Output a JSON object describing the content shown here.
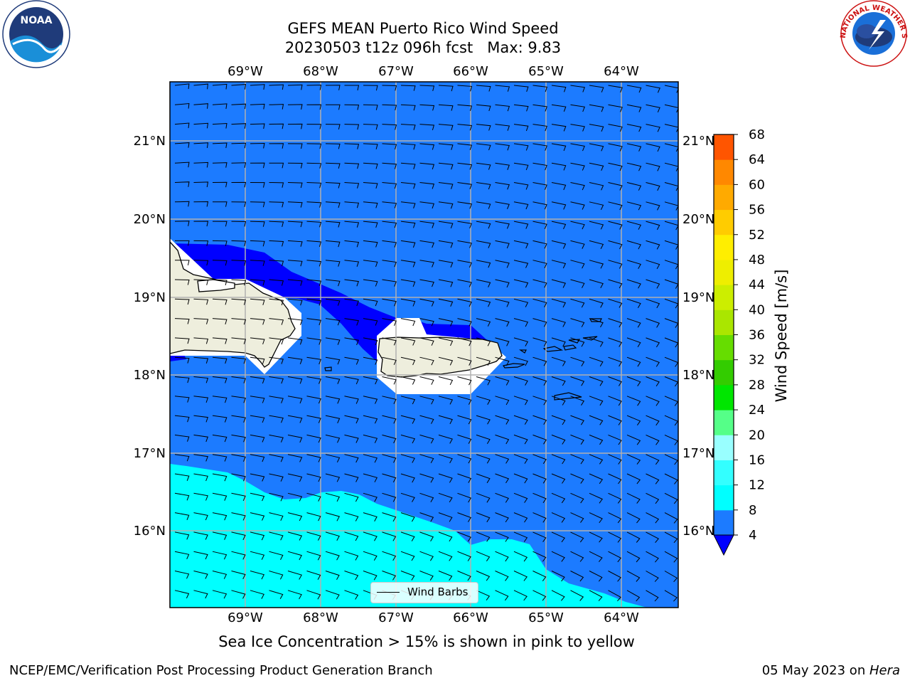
{
  "header": {
    "title_line1": "GEFS MEAN Puerto Rico Wind Speed",
    "title_line2": "20230503 t12z 096h fcst   Max: 9.83"
  },
  "logos": {
    "noaa_text": "NOAA",
    "noaa_ring_text": "NATIONAL OCEANIC AND ATMOSPHERIC ADMINISTRATION · U.S. DEPARTMENT OF COMMERCE",
    "nws_ring_text": "NATIONAL WEATHER SERVICE"
  },
  "map": {
    "lon_labels": [
      "69°W",
      "68°W",
      "67°W",
      "66°W",
      "65°W",
      "64°W"
    ],
    "lat_labels": [
      "21°N",
      "20°N",
      "19°N",
      "18°N",
      "17°N",
      "16°N"
    ],
    "lon_range": [
      -70.0,
      -63.25
    ],
    "lat_range": [
      15.0,
      21.75
    ],
    "colors": {
      "ocean_4_8": "#1c7bff",
      "ocean_8_12": "#00ffff",
      "ocean_0_4": "#0000ff",
      "land": "#eeeedd",
      "grid": "#b0b0b0"
    },
    "legend_label": "Wind Barbs"
  },
  "colorbar": {
    "label": "Wind Speed [m/s]",
    "ticks": [
      "4",
      "8",
      "12",
      "16",
      "20",
      "24",
      "28",
      "32",
      "36",
      "40",
      "44",
      "48",
      "52",
      "56",
      "60",
      "64",
      "68"
    ],
    "colors": [
      "#1c7bff",
      "#00ffff",
      "#33ffff",
      "#99ffff",
      "#55ff88",
      "#00e600",
      "#33cc00",
      "#66dd00",
      "#aae600",
      "#ccee00",
      "#eeee00",
      "#ffee00",
      "#ffcc00",
      "#ffaa00",
      "#ff8800",
      "#ff5500",
      "#ff2200",
      "#ff0000"
    ],
    "under_color": "#0000ff"
  },
  "note": "Sea Ice Concentration > 15% is shown in pink to yellow",
  "footer": {
    "left": "NCEP/EMC/Verification Post Processing Product Generation Branch",
    "date": "05 May 2023 on ",
    "machine": "Hera"
  }
}
